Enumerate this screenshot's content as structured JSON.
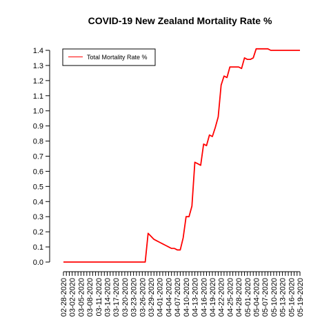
{
  "chart_data": {
    "type": "line",
    "title": "COVID-19 New Zealand Mortality Rate %",
    "xlabel": "",
    "ylabel": "",
    "ylim": [
      0,
      1.4
    ],
    "yticks": [
      "0.0",
      "0.1",
      "0.2",
      "0.3",
      "0.4",
      "0.5",
      "0.6",
      "0.7",
      "0.8",
      "0.9",
      "1.0",
      "1.1",
      "1.2",
      "1.3",
      "1.4"
    ],
    "x_tick_labels": [
      "02-28-2020",
      "03-02-2020",
      "03-05-2020",
      "03-08-2020",
      "03-11-2020",
      "03-14-2020",
      "03-17-2020",
      "03-20-2020",
      "03-23-2020",
      "03-26-2020",
      "03-29-2020",
      "04-01-2020",
      "04-04-2020",
      "04-07-2020",
      "04-10-2020",
      "04-13-2020",
      "04-16-2020",
      "04-19-2020",
      "04-22-2020",
      "04-25-2020",
      "04-28-2020",
      "05-01-2020",
      "05-04-2020",
      "05-07-2020",
      "05-10-2020",
      "05-13-2020",
      "05-16-2020",
      "05-19-2020"
    ],
    "x_start_label": "02-28-2020",
    "x_end_label": "05-19-2020",
    "grid": false,
    "legend_position": "top-left",
    "series": [
      {
        "name": "Total Mortality Rate %",
        "color": "#ff0000",
        "values": [
          0,
          0,
          0,
          0,
          0,
          0,
          0,
          0,
          0,
          0,
          0,
          0,
          0,
          0,
          0,
          0,
          0,
          0,
          0,
          0,
          0,
          0,
          0,
          0,
          0,
          0,
          0,
          0,
          0,
          0.19,
          0.17,
          0.15,
          0.14,
          0.13,
          0.12,
          0.11,
          0.1,
          0.09,
          0.09,
          0.08,
          0.08,
          0.16,
          0.3,
          0.3,
          0.37,
          0.66,
          0.65,
          0.64,
          0.78,
          0.77,
          0.84,
          0.83,
          0.89,
          0.96,
          1.17,
          1.23,
          1.22,
          1.29,
          1.29,
          1.29,
          1.29,
          1.28,
          1.35,
          1.34,
          1.34,
          1.35,
          1.41,
          1.41,
          1.41,
          1.41,
          1.41,
          1.4,
          1.4,
          1.4,
          1.4,
          1.4,
          1.4,
          1.4,
          1.4,
          1.4,
          1.4,
          1.4
        ]
      }
    ]
  }
}
